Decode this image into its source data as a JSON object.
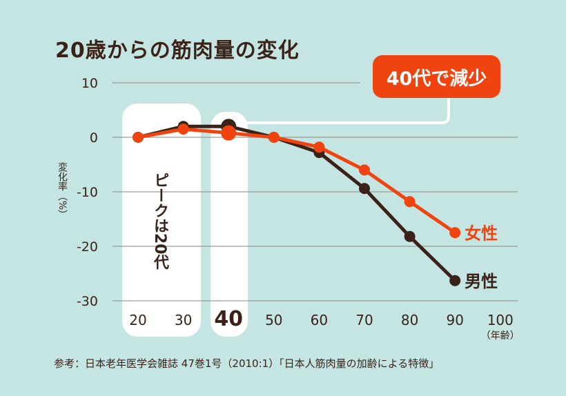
{
  "title": "20歳からの筋肉量の変化",
  "callout": "40代で減少",
  "peak_label": "ピークは20代",
  "source": "参考：日本老年医学会雑誌 47巻1号（2010:1）「日本人筋肉量の加齢による特徴」",
  "colors": {
    "background": "#c5e5e3",
    "women": "#f04410",
    "men": "#3a2218",
    "highlight": "#ffffff"
  },
  "chart_data": {
    "type": "line",
    "title": "20歳からの筋肉量の変化",
    "xlabel": "（年齢）",
    "ylabel": "変化率（%）",
    "x": [
      20,
      30,
      40,
      50,
      60,
      70,
      80,
      90
    ],
    "x_ticks": [
      "20",
      "30",
      "40",
      "50",
      "60",
      "70",
      "80",
      "90",
      "100"
    ],
    "y_ticks": [
      "10",
      "0",
      "-10",
      "-20",
      "-30"
    ],
    "xlim": [
      20,
      100
    ],
    "ylim": [
      -30,
      10
    ],
    "grid": true,
    "series": [
      {
        "name": "女性",
        "color": "#f04410",
        "values": [
          0,
          1.5,
          0.8,
          0,
          -1.8,
          -6.0,
          -11.8,
          -17.5
        ]
      },
      {
        "name": "男性",
        "color": "#3a2218",
        "values": [
          0,
          2.0,
          2.0,
          0,
          -2.8,
          -9.4,
          -18.2,
          -26.3
        ]
      }
    ],
    "highlight_x": [
      40
    ]
  }
}
